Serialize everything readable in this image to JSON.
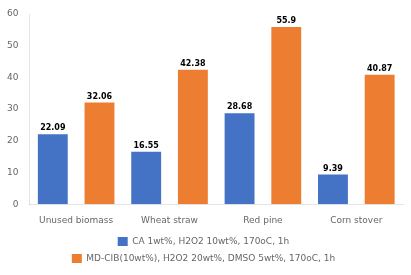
{
  "chart_data": {
    "type": "bar",
    "categories": [
      "Unused biomass",
      "Wheat straw",
      "Red pine",
      "Corn stover"
    ],
    "series": [
      {
        "name": "CA 1wt%, H2O2 10wt%, 170oC, 1h",
        "color": "#4472C4",
        "values": [
          22.09,
          16.55,
          28.68,
          9.39
        ]
      },
      {
        "name": "MD-CIB(10wt%), H2O2 20wt%, DMSO 5wt%, 170oC, 1h",
        "color": "#ED7D31",
        "values": [
          32.06,
          42.38,
          55.9,
          40.87
        ]
      }
    ],
    "ylim": [
      0,
      60
    ],
    "yticks": [
      0,
      10,
      20,
      30,
      40,
      50,
      60
    ],
    "grid": false,
    "legend": "bottom",
    "data_labels": true
  }
}
